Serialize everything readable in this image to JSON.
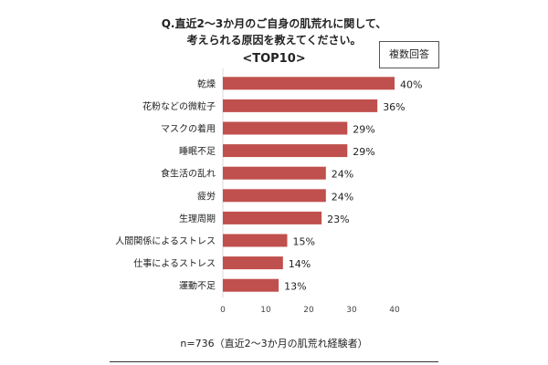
{
  "title_line1": "Q.直近2～3か月のご自身の肌荒れに関して、",
  "title_line2": "考えられる原因を教えてください。",
  "title_line3": "<TOP10>",
  "badge": "複数回答",
  "note": "n=736（直近2～3か月の肌荒れ経験者）",
  "colors": {
    "bar": "#c0504d",
    "axis": "#d9d9d9"
  },
  "chart_data": {
    "type": "bar",
    "orientation": "horizontal",
    "categories": [
      "乾燥",
      "花粉などの微粒子",
      "マスクの着用",
      "睡眠不足",
      "食生活の乱れ",
      "疲労",
      "生理周期",
      "人間関係によるストレス",
      "仕事によるストレス",
      "運動不足"
    ],
    "values": [
      40,
      36,
      29,
      29,
      24,
      24,
      23,
      15,
      14,
      13
    ],
    "value_labels": [
      "40%",
      "36%",
      "29%",
      "29%",
      "24%",
      "24%",
      "23%",
      "15%",
      "14%",
      "13%"
    ],
    "xlim": [
      0,
      40
    ],
    "xticks": [
      0,
      10,
      20,
      30,
      40
    ],
    "grid": false
  }
}
